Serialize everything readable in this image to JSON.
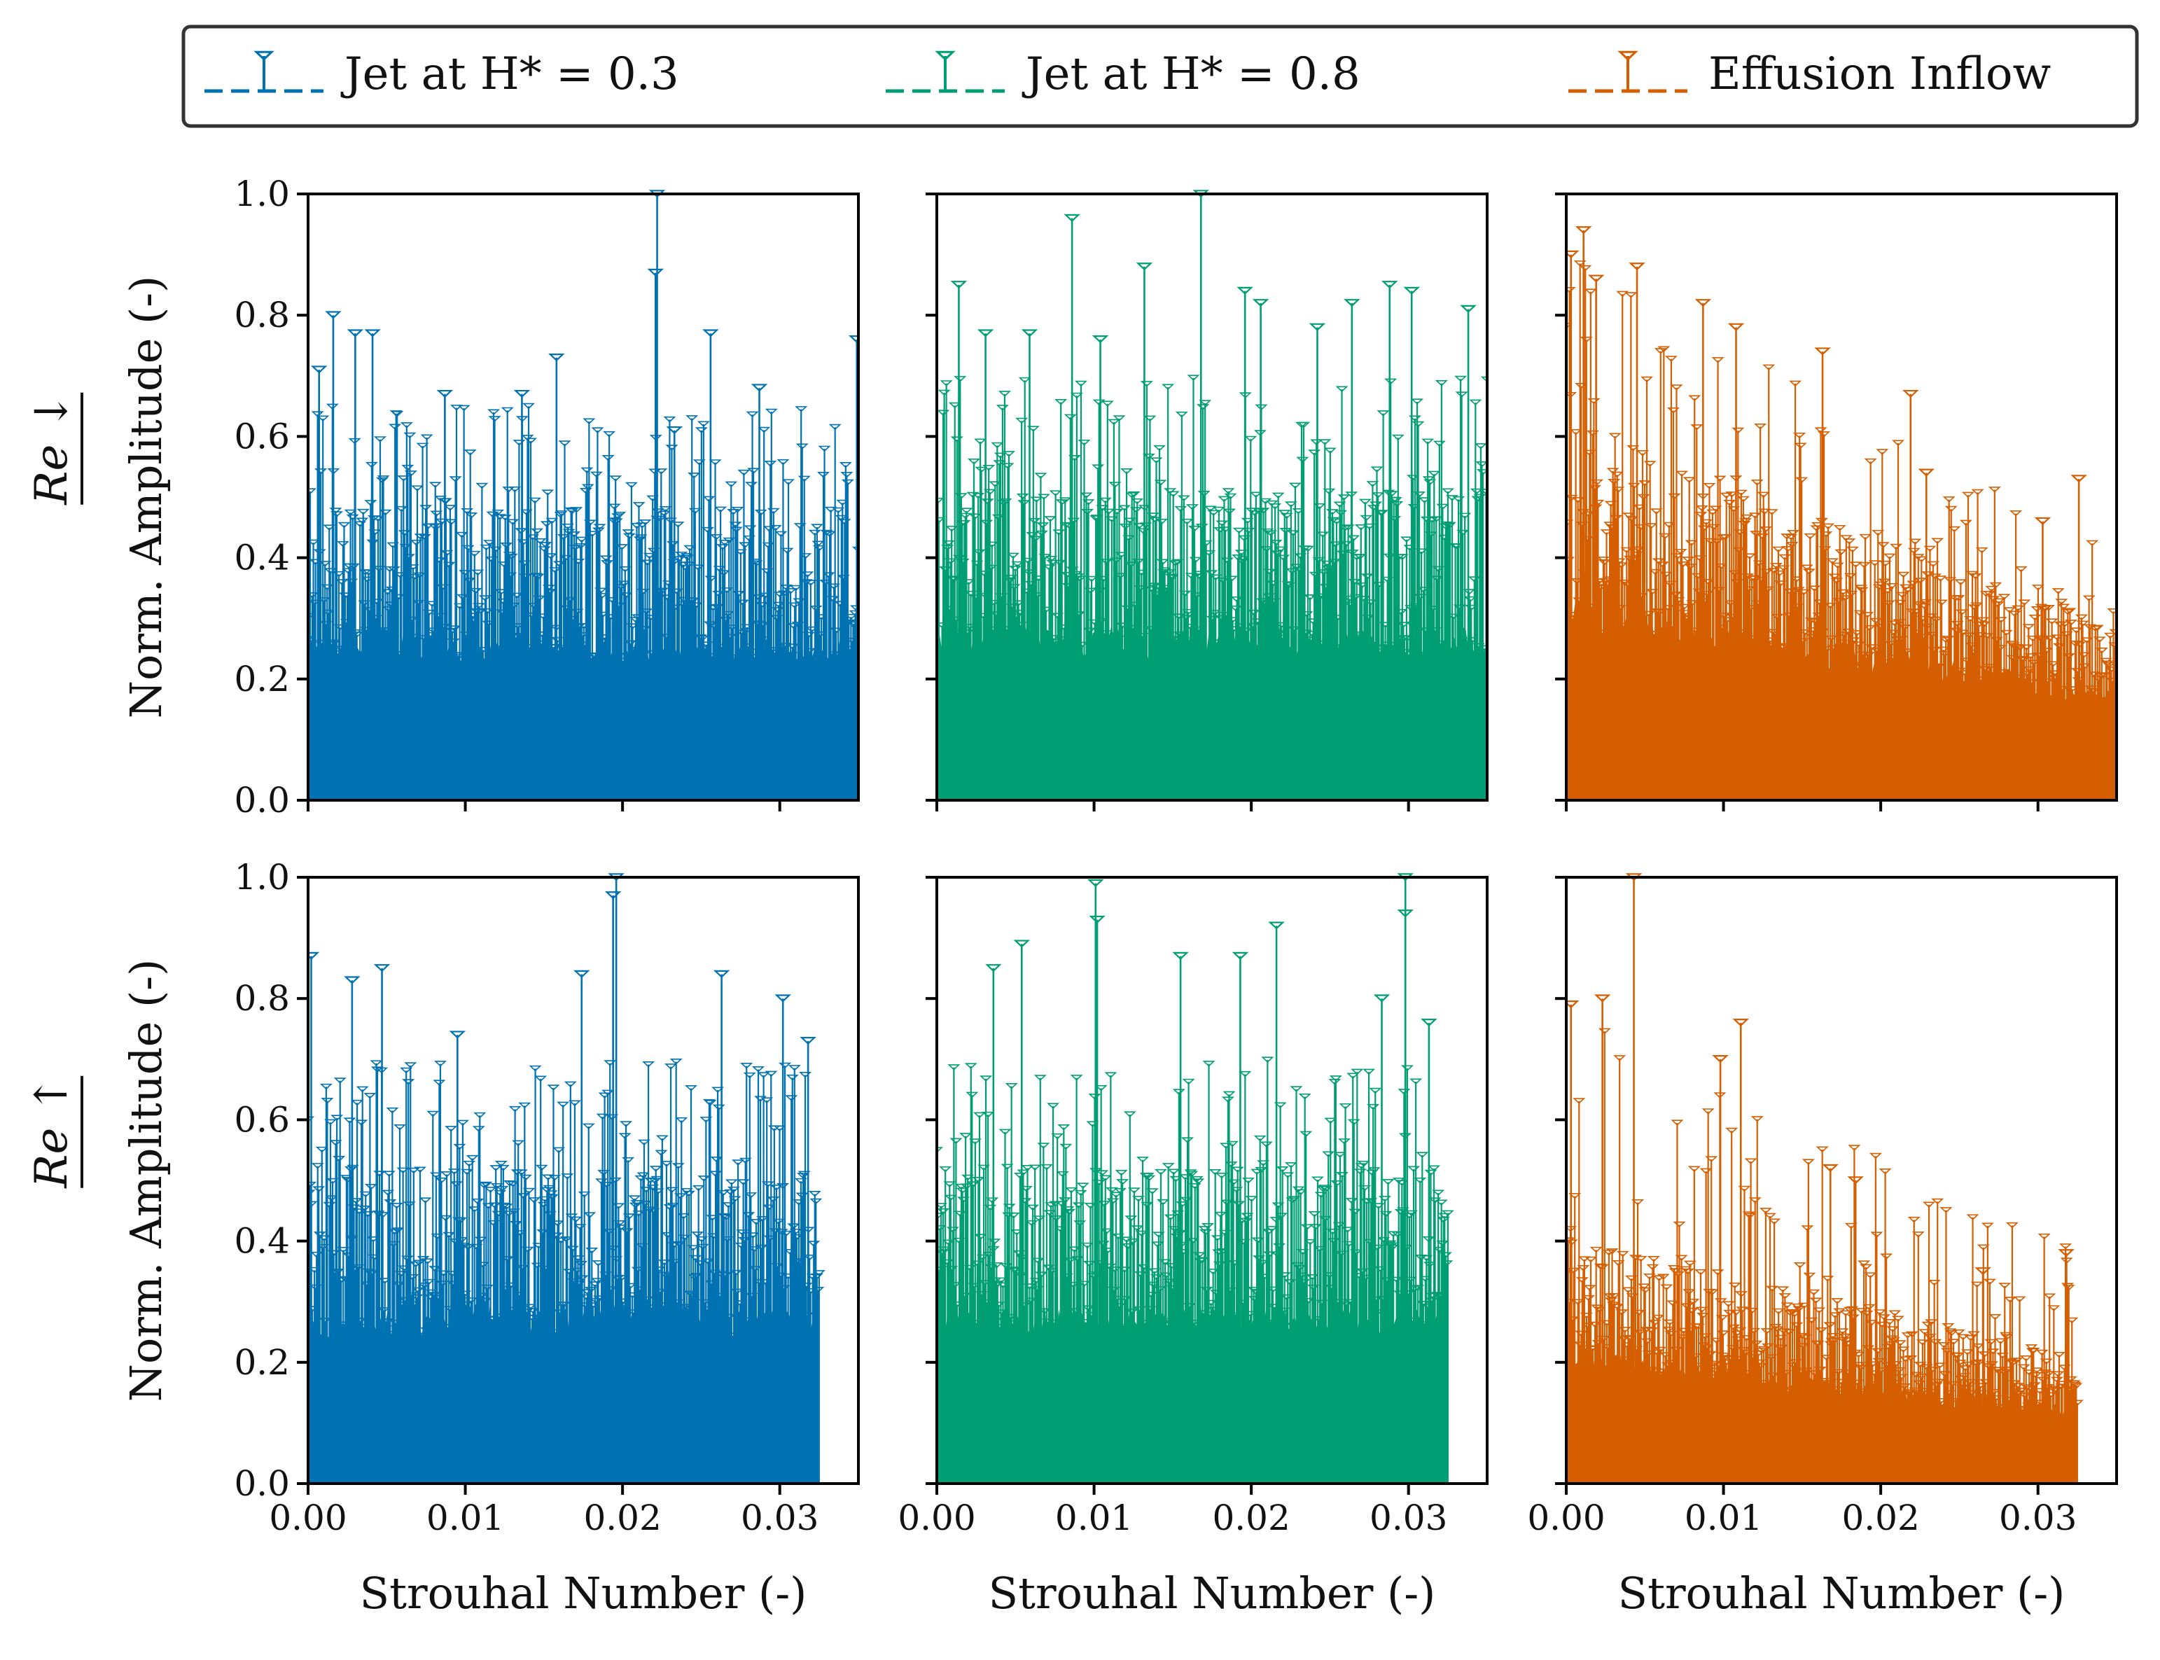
{
  "chart_data": {
    "type": "stem",
    "title": "",
    "legend": {
      "placement": "top",
      "entries": [
        {
          "label": "Jet at H* = 0.3",
          "color": "#0072B2",
          "marker": "triangle-down-open",
          "linestyle": "dashed"
        },
        {
          "label": "Jet at H* = 0.8",
          "color": "#009E73",
          "marker": "triangle-down-open",
          "linestyle": "dashed"
        },
        {
          "label": "Effusion Inflow",
          "color": "#D55E00",
          "marker": "triangle-down-open",
          "linestyle": "dashed"
        }
      ]
    },
    "rows": [
      {
        "label": "Re ↓",
        "ylabel": "Norm. Amplitude (-)"
      },
      {
        "label": "Re ↑",
        "ylabel": "Norm. Amplitude (-)"
      }
    ],
    "xlabel": "Strouhal Number (-)",
    "xlim": [
      0.0,
      0.035
    ],
    "ylim": [
      0.0,
      1.0
    ],
    "xticks": [
      "0.00",
      "0.01",
      "0.02",
      "0.03"
    ],
    "yticks": [
      "0.0",
      "0.2",
      "0.4",
      "0.6",
      "0.8",
      "1.0"
    ],
    "panels": [
      {
        "row": 0,
        "col": 0,
        "series": "Jet at H* = 0.3",
        "color": "#0072B2",
        "st_max": 0.035,
        "n_stems": 520,
        "dense_fill_level": 0.3,
        "typical_peak_range": [
          0.45,
          0.65
        ],
        "highlight_peaks": [
          {
            "st": 0.0007,
            "amp": 0.71
          },
          {
            "st": 0.0016,
            "amp": 0.8
          },
          {
            "st": 0.003,
            "amp": 0.77
          },
          {
            "st": 0.0041,
            "amp": 0.77
          },
          {
            "st": 0.0087,
            "amp": 0.67
          },
          {
            "st": 0.0136,
            "amp": 0.67
          },
          {
            "st": 0.0158,
            "amp": 0.73
          },
          {
            "st": 0.0222,
            "amp": 1.0
          },
          {
            "st": 0.0221,
            "amp": 0.87
          },
          {
            "st": 0.0233,
            "amp": 0.61
          },
          {
            "st": 0.0256,
            "amp": 0.77
          },
          {
            "st": 0.0287,
            "amp": 0.68
          },
          {
            "st": 0.0349,
            "amp": 0.76
          }
        ]
      },
      {
        "row": 0,
        "col": 1,
        "series": "Jet at H* = 0.8",
        "color": "#009E73",
        "st_max": 0.035,
        "n_stems": 520,
        "dense_fill_level": 0.32,
        "typical_peak_range": [
          0.45,
          0.7
        ],
        "highlight_peaks": [
          {
            "st": 0.0014,
            "amp": 0.85
          },
          {
            "st": 0.0031,
            "amp": 0.77
          },
          {
            "st": 0.0059,
            "amp": 0.77
          },
          {
            "st": 0.0086,
            "amp": 0.96
          },
          {
            "st": 0.0104,
            "amp": 0.76
          },
          {
            "st": 0.0132,
            "amp": 0.88
          },
          {
            "st": 0.0168,
            "amp": 1.0
          },
          {
            "st": 0.0196,
            "amp": 0.84
          },
          {
            "st": 0.0206,
            "amp": 0.82
          },
          {
            "st": 0.0242,
            "amp": 0.78
          },
          {
            "st": 0.0264,
            "amp": 0.82
          },
          {
            "st": 0.0288,
            "amp": 0.85
          },
          {
            "st": 0.0302,
            "amp": 0.84
          },
          {
            "st": 0.0338,
            "amp": 0.81
          }
        ]
      },
      {
        "row": 0,
        "col": 2,
        "series": "Effusion Inflow",
        "color": "#D55E00",
        "st_max": 0.035,
        "n_stems": 520,
        "dense_fill_level": 0.3,
        "typical_peak_range": [
          0.25,
          0.75
        ],
        "highlight_peaks": [
          {
            "st": 0.0003,
            "amp": 0.9
          },
          {
            "st": 0.0011,
            "amp": 0.94
          },
          {
            "st": 0.0019,
            "amp": 0.86
          },
          {
            "st": 0.0045,
            "amp": 0.88
          },
          {
            "st": 0.0087,
            "amp": 0.82
          },
          {
            "st": 0.0108,
            "amp": 0.78
          },
          {
            "st": 0.0163,
            "amp": 0.74
          },
          {
            "st": 0.0219,
            "amp": 0.67
          },
          {
            "st": 0.0229,
            "amp": 0.54
          },
          {
            "st": 0.0303,
            "amp": 0.46
          },
          {
            "st": 0.0326,
            "amp": 0.53
          }
        ]
      },
      {
        "row": 1,
        "col": 0,
        "series": "Jet at H* = 0.3",
        "color": "#0072B2",
        "st_max": 0.0325,
        "n_stems": 480,
        "dense_fill_level": 0.33,
        "typical_peak_range": [
          0.45,
          0.7
        ],
        "highlight_peaks": [
          {
            "st": 0.0002,
            "amp": 0.87
          },
          {
            "st": 0.0028,
            "amp": 0.83
          },
          {
            "st": 0.0047,
            "amp": 0.85
          },
          {
            "st": 0.0095,
            "amp": 0.74
          },
          {
            "st": 0.0174,
            "amp": 0.84
          },
          {
            "st": 0.0196,
            "amp": 1.0
          },
          {
            "st": 0.0194,
            "amp": 0.97
          },
          {
            "st": 0.0263,
            "amp": 0.84
          },
          {
            "st": 0.0302,
            "amp": 0.8
          },
          {
            "st": 0.0318,
            "amp": 0.73
          }
        ]
      },
      {
        "row": 1,
        "col": 1,
        "series": "Jet at H* = 0.8",
        "color": "#009E73",
        "st_max": 0.0325,
        "n_stems": 480,
        "dense_fill_level": 0.33,
        "typical_peak_range": [
          0.45,
          0.7
        ],
        "highlight_peaks": [
          {
            "st": 0.0036,
            "amp": 0.85
          },
          {
            "st": 0.0054,
            "amp": 0.89
          },
          {
            "st": 0.0101,
            "amp": 0.99
          },
          {
            "st": 0.0102,
            "amp": 0.93
          },
          {
            "st": 0.0155,
            "amp": 0.87
          },
          {
            "st": 0.0193,
            "amp": 0.87
          },
          {
            "st": 0.0216,
            "amp": 0.92
          },
          {
            "st": 0.0283,
            "amp": 0.8
          },
          {
            "st": 0.0298,
            "amp": 1.0
          },
          {
            "st": 0.0298,
            "amp": 0.94
          },
          {
            "st": 0.0313,
            "amp": 0.76
          }
        ]
      },
      {
        "row": 1,
        "col": 2,
        "series": "Effusion Inflow",
        "color": "#D55E00",
        "st_max": 0.0325,
        "n_stems": 480,
        "dense_fill_level": 0.2,
        "typical_peak_range": [
          0.2,
          0.65
        ],
        "highlight_peaks": [
          {
            "st": 0.0003,
            "amp": 0.79
          },
          {
            "st": 0.0023,
            "amp": 0.8
          },
          {
            "st": 0.0043,
            "amp": 1.0
          },
          {
            "st": 0.0098,
            "amp": 0.7
          },
          {
            "st": 0.0111,
            "amp": 0.76
          },
          {
            "st": 0.0168,
            "amp": 0.52
          },
          {
            "st": 0.0184,
            "amp": 0.5
          },
          {
            "st": 0.0265,
            "amp": 0.35
          },
          {
            "st": 0.0318,
            "amp": 0.38
          }
        ]
      }
    ]
  }
}
